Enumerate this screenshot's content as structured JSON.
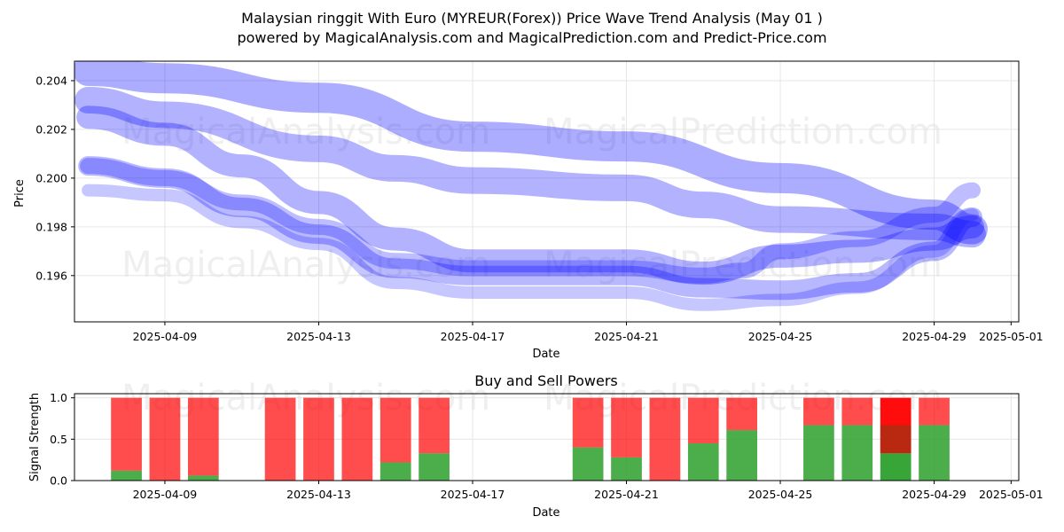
{
  "title_line1": "Malaysian ringgit With Euro (MYREUR(Forex)) Price Wave Trend Analysis (May 01 )",
  "title_line2": "powered by MagicalAnalysis.com and MagicalPrediction.com and Predict-Price.com",
  "watermarks": [
    "MagicalAnalysis.com",
    "MagicalPrediction.com"
  ],
  "colors": {
    "wave": "#0000ff",
    "buy": "#2ca02c",
    "sell": "#ff0000",
    "grid": "#e6e6e6"
  },
  "chart_data": [
    {
      "type": "line",
      "xlabel": "Date",
      "ylabel": "Price",
      "xlim": [
        "2025-04-07",
        "2025-05-01"
      ],
      "ylim": [
        0.1941,
        0.2048
      ],
      "grid": true,
      "x_ticks": [
        "2025-04-09",
        "2025-04-13",
        "2025-04-17",
        "2025-04-21",
        "2025-04-25",
        "2025-04-29",
        "2025-05-01"
      ],
      "y_ticks": [
        0.196,
        0.198,
        0.2,
        0.202,
        0.204
      ],
      "series": [
        {
          "x": [
            "2025-04-07",
            "2025-04-09",
            "2025-04-13",
            "2025-04-17",
            "2025-04-21",
            "2025-04-25",
            "2025-04-29",
            "2025-04-30"
          ],
          "values": [
            0.2044,
            0.2041,
            0.2033,
            0.2017,
            0.2013,
            0.2,
            0.1985,
            0.1979
          ]
        },
        {
          "x": [
            "2025-04-07",
            "2025-04-09",
            "2025-04-13",
            "2025-04-15",
            "2025-04-17",
            "2025-04-21",
            "2025-04-23",
            "2025-04-25",
            "2025-04-29",
            "2025-04-30"
          ],
          "values": [
            0.2032,
            0.2026,
            0.2012,
            0.2004,
            0.1999,
            0.1996,
            0.1989,
            0.1983,
            0.198,
            0.1977
          ]
        },
        {
          "x": [
            "2025-04-07",
            "2025-04-09",
            "2025-04-11",
            "2025-04-13",
            "2025-04-15",
            "2025-04-17",
            "2025-04-21",
            "2025-04-23",
            "2025-04-25",
            "2025-04-27",
            "2025-04-29",
            "2025-04-30"
          ],
          "values": [
            0.2025,
            0.2018,
            0.2005,
            0.199,
            0.1975,
            0.1966,
            0.1966,
            0.1961,
            0.1968,
            0.197,
            0.1975,
            0.198
          ]
        },
        {
          "x": [
            "2025-04-07",
            "2025-04-09",
            "2025-04-11",
            "2025-04-13",
            "2025-04-15",
            "2025-04-17",
            "2025-04-21",
            "2025-04-23",
            "2025-04-25",
            "2025-04-27",
            "2025-04-29",
            "2025-04-30"
          ],
          "values": [
            0.2005,
            0.2,
            0.1988,
            0.1977,
            0.1963,
            0.196,
            0.196,
            0.1955,
            0.1954,
            0.1957,
            0.197,
            0.1984
          ]
        },
        {
          "x": [
            "2025-04-07",
            "2025-04-09",
            "2025-04-11",
            "2025-04-13",
            "2025-04-15",
            "2025-04-17",
            "2025-04-21",
            "2025-04-23",
            "2025-04-24",
            "2025-04-25",
            "2025-04-27",
            "2025-04-29",
            "2025-04-30"
          ],
          "values": [
            0.2005,
            0.2,
            0.199,
            0.198,
            0.1966,
            0.1963,
            0.1963,
            0.196,
            0.1962,
            0.197,
            0.1975,
            0.1985,
            0.1995
          ]
        },
        {
          "x": [
            "2025-04-07",
            "2025-04-09",
            "2025-04-11",
            "2025-04-13",
            "2025-04-15",
            "2025-04-17",
            "2025-04-21",
            "2025-04-23",
            "2025-04-25",
            "2025-04-27",
            "2025-04-29",
            "2025-04-30"
          ],
          "values": [
            0.1995,
            0.1993,
            0.1982,
            0.1973,
            0.1957,
            0.1953,
            0.1953,
            0.1948,
            0.195,
            0.1955,
            0.197,
            0.1985
          ]
        }
      ]
    },
    {
      "type": "bar",
      "title": "Buy and Sell Powers",
      "xlabel": "Date",
      "ylabel": "Signal Strength",
      "ylim": [
        0,
        1.05
      ],
      "x_ticks": [
        "2025-04-09",
        "2025-04-13",
        "2025-04-17",
        "2025-04-21",
        "2025-04-25",
        "2025-04-29",
        "2025-05-01"
      ],
      "y_ticks": [
        "0.0",
        "0.5",
        "1.0"
      ],
      "categories": [
        "2025-04-08",
        "2025-04-09",
        "2025-04-10",
        "2025-04-12",
        "2025-04-13",
        "2025-04-14",
        "2025-04-15",
        "2025-04-16",
        "2025-04-20",
        "2025-04-21",
        "2025-04-22",
        "2025-04-23",
        "2025-04-24",
        "2025-04-26",
        "2025-04-27",
        "2025-04-28",
        "2025-04-29"
      ],
      "series": [
        {
          "values": [
            0.12,
            0.0,
            0.06,
            0.0,
            0.0,
            0.0,
            0.22,
            0.33,
            0.4,
            0.28,
            0.0,
            0.45,
            0.61,
            0.67,
            0.67,
            0.33,
            0.67
          ]
        },
        {
          "values": [
            0.88,
            1.0,
            0.94,
            1.0,
            1.0,
            1.0,
            0.78,
            0.67,
            0.6,
            0.72,
            1.0,
            0.55,
            0.39,
            0.33,
            0.33,
            0.67,
            0.33
          ]
        }
      ]
    }
  ]
}
